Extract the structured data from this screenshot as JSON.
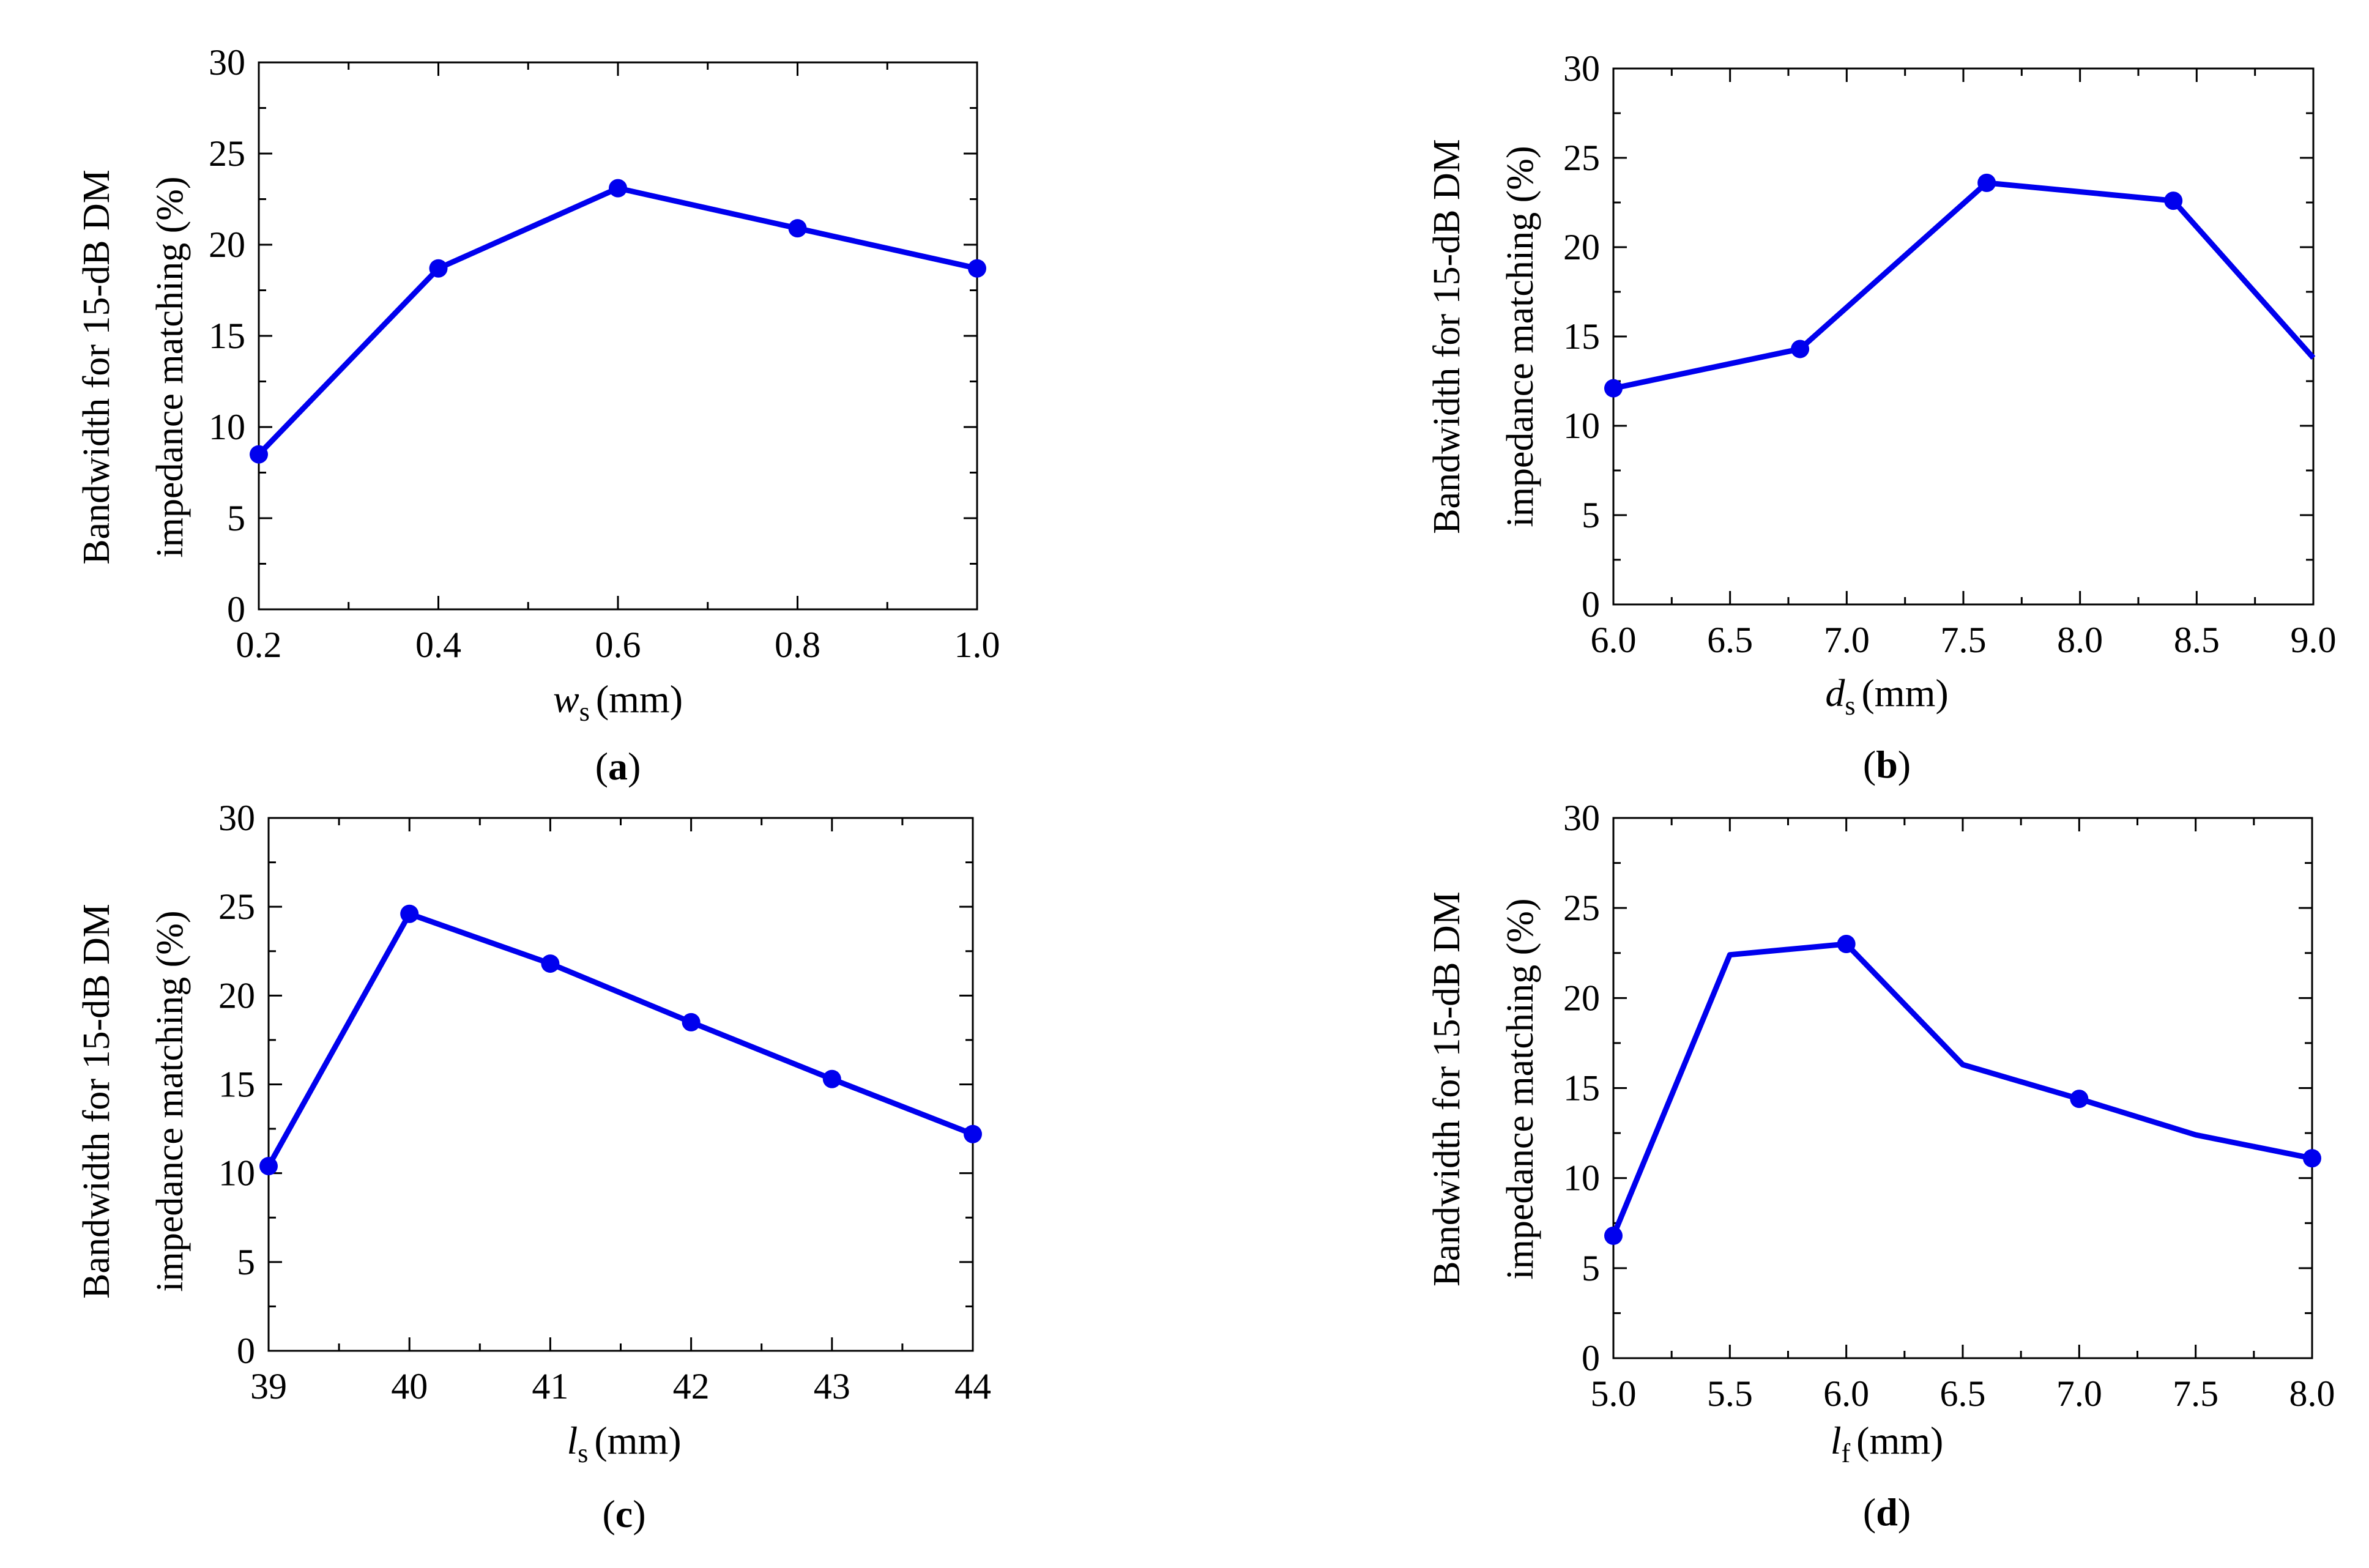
{
  "chart_data": [
    {
      "type": "line",
      "panel": "a",
      "caption": {
        "open": "(",
        "letter": "a",
        "close": ")"
      },
      "xlabel": {
        "var": "w",
        "sub": "s",
        "unit": "(mm)"
      },
      "ylabel": [
        "Bandwidth for 15-dB DM",
        "impedance matching (%)"
      ],
      "xlim": [
        0.2,
        1.0
      ],
      "ylim": [
        0,
        30
      ],
      "xticks": [
        0.2,
        0.4,
        0.6,
        0.8,
        1.0
      ],
      "xtick_labels": [
        "0.2",
        "0.4",
        "0.6",
        "0.8",
        "1.0"
      ],
      "yticks": [
        0,
        5,
        10,
        15,
        20,
        25,
        30
      ],
      "ytick_labels": [
        "0",
        "5",
        "10",
        "15",
        "20",
        "25",
        "30"
      ],
      "series": [
        {
          "name": "bandwidth",
          "color": "#0000ee",
          "x": [
            0.2,
            0.4,
            0.6,
            0.8,
            1.0
          ],
          "values": [
            8.5,
            18.7,
            23.1,
            20.9,
            18.7
          ],
          "markers": [
            true,
            true,
            true,
            true,
            true
          ]
        }
      ]
    },
    {
      "type": "line",
      "panel": "b",
      "caption": {
        "open": "(",
        "letter": "b",
        "close": ")"
      },
      "xlabel": {
        "var": "d",
        "sub": "s",
        "unit": "(mm)"
      },
      "ylabel": [
        "Bandwidth for 15-dB DM",
        "impedance matching (%)"
      ],
      "xlim": [
        6.0,
        9.0
      ],
      "ylim": [
        0,
        30
      ],
      "xticks": [
        6.0,
        6.5,
        7.0,
        7.5,
        8.0,
        8.5,
        9.0
      ],
      "xtick_labels": [
        "6.0",
        "6.5",
        "7.0",
        "7.5",
        "8.0",
        "8.5",
        "9.0"
      ],
      "yticks": [
        0,
        5,
        10,
        15,
        20,
        25,
        30
      ],
      "ytick_labels": [
        "0",
        "5",
        "10",
        "15",
        "20",
        "25",
        "30"
      ],
      "series": [
        {
          "name": "bandwidth",
          "color": "#0000ee",
          "x": [
            6.0,
            6.8,
            7.6,
            8.4,
            9.0
          ],
          "values": [
            12.1,
            14.3,
            23.6,
            22.6,
            13.8
          ],
          "markers": [
            true,
            true,
            true,
            true,
            false
          ]
        }
      ]
    },
    {
      "type": "line",
      "panel": "c",
      "caption": {
        "open": "(",
        "letter": "c",
        "close": ")"
      },
      "xlabel": {
        "var": "l",
        "sub": "s",
        "unit": "(mm)"
      },
      "ylabel": [
        "Bandwidth for 15-dB DM",
        "impedance matching (%)"
      ],
      "xlim": [
        39,
        44
      ],
      "ylim": [
        0,
        30
      ],
      "xticks": [
        39,
        40,
        41,
        42,
        43,
        44
      ],
      "xtick_labels": [
        "39",
        "40",
        "41",
        "42",
        "43",
        "44"
      ],
      "yticks": [
        0,
        5,
        10,
        15,
        20,
        25,
        30
      ],
      "ytick_labels": [
        "0",
        "5",
        "10",
        "15",
        "20",
        "25",
        "30"
      ],
      "series": [
        {
          "name": "bandwidth",
          "color": "#0000ee",
          "x": [
            39,
            40,
            41,
            42,
            43,
            44
          ],
          "values": [
            10.4,
            24.6,
            21.8,
            18.5,
            15.3,
            12.2
          ],
          "markers": [
            true,
            true,
            true,
            true,
            true,
            true
          ]
        }
      ]
    },
    {
      "type": "line",
      "panel": "d",
      "caption": {
        "open": "(",
        "letter": "d",
        "close": ")"
      },
      "xlabel": {
        "var": "l",
        "sub": "f",
        "unit": "(mm)"
      },
      "ylabel": [
        "Bandwidth for 15-dB DM",
        "impedance matching (%)"
      ],
      "xlim": [
        5.0,
        8.0
      ],
      "ylim": [
        0,
        30
      ],
      "xticks": [
        5.0,
        5.5,
        6.0,
        6.5,
        7.0,
        7.5,
        8.0
      ],
      "xtick_labels": [
        "5.0",
        "5.5",
        "6.0",
        "6.5",
        "7.0",
        "7.5",
        "8.0"
      ],
      "yticks": [
        0,
        5,
        10,
        15,
        20,
        25,
        30
      ],
      "ytick_labels": [
        "0",
        "5",
        "10",
        "15",
        "20",
        "25",
        "30"
      ],
      "series": [
        {
          "name": "bandwidth",
          "color": "#0000ee",
          "x": [
            5.0,
            5.5,
            6.0,
            6.5,
            7.0,
            7.5,
            8.0
          ],
          "values": [
            6.8,
            22.4,
            23.0,
            16.3,
            14.4,
            12.4,
            11.1
          ],
          "markers": [
            true,
            false,
            true,
            false,
            true,
            false,
            true
          ]
        }
      ]
    }
  ]
}
